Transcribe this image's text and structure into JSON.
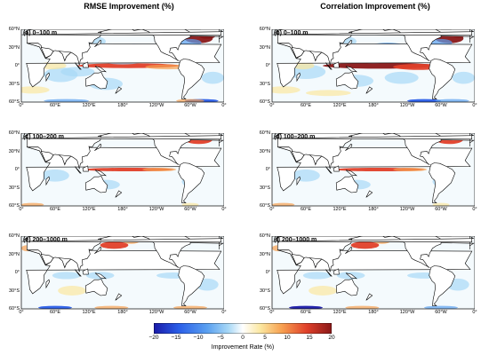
{
  "column_titles": [
    "RMSE Improvement (%)",
    "Correlation Improvement (%)"
  ],
  "panels": [
    {
      "label": "(a) 0–100 m",
      "metric": "rmse",
      "depth": "0-100"
    },
    {
      "label": "(b) 0–100 m",
      "metric": "corr",
      "depth": "0-100"
    },
    {
      "label": "(c) 100–200 m",
      "metric": "rmse",
      "depth": "100-200"
    },
    {
      "label": "(d) 100–200 m",
      "metric": "corr",
      "depth": "100-200"
    },
    {
      "label": "(e) 200–1000 m",
      "metric": "rmse",
      "depth": "200-1000"
    },
    {
      "label": "(f) 200–1000 m",
      "metric": "corr",
      "depth": "200-1000"
    }
  ],
  "lat_ticks": [
    "60°N",
    "30°N",
    "0°",
    "30°S",
    "60°S"
  ],
  "lon_ticks": [
    "0°",
    "60°E",
    "120°E",
    "180°",
    "120°W",
    "60°W",
    "0°"
  ],
  "colorbar": {
    "ticks": [
      "−20",
      "−15",
      "−10",
      "−5",
      "0",
      "5",
      "10",
      "15",
      "20"
    ],
    "label": "Improvement Rate (%)",
    "colors": [
      "#1a1aa8",
      "#2a5ee8",
      "#5aa0f0",
      "#a8d8f6",
      "#ffffff",
      "#fbe7a0",
      "#f7a050",
      "#e0402a",
      "#8a1818"
    ]
  }
}
